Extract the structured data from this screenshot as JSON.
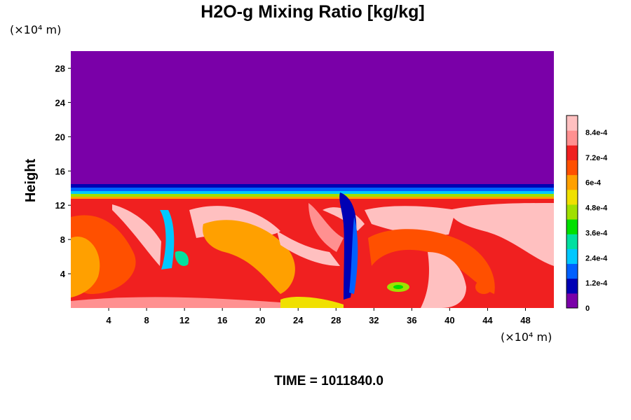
{
  "chart_data": {
    "type": "heatmap",
    "title": "H2O-g Mixing Ratio [kg/kg]",
    "ylabel": "Height",
    "xunit": "(×10⁴ m)",
    "yunit": "(×10⁴ m)",
    "x_range": [
      0,
      51
    ],
    "y_range": [
      0,
      30
    ],
    "x_ticks": [
      4,
      8,
      12,
      16,
      20,
      24,
      28,
      32,
      36,
      40,
      44,
      48
    ],
    "y_ticks": [
      4,
      8,
      12,
      16,
      20,
      24,
      28
    ],
    "colorbar": {
      "range": [
        0,
        0.00092
      ],
      "ticks": [
        {
          "value": 0,
          "label": "0"
        },
        {
          "value": 0.00012,
          "label": "1.2e-4"
        },
        {
          "value": 0.00024,
          "label": "2.4e-4"
        },
        {
          "value": 0.00036,
          "label": "3.6e-4"
        },
        {
          "value": 0.00048,
          "label": "4.8e-4"
        },
        {
          "value": 0.0006,
          "label": "6e-4"
        },
        {
          "value": 0.00072,
          "label": "7.2e-4"
        },
        {
          "value": 0.00084,
          "label": "8.4e-4"
        }
      ],
      "colors": [
        "#7a00a8",
        "#0000b4",
        "#0060ff",
        "#00c8ff",
        "#00e0a0",
        "#00e000",
        "#a0e000",
        "#f0e000",
        "#ffa000",
        "#ff5000",
        "#f02020",
        "#ff9090",
        "#ffc0c0"
      ]
    },
    "field": {
      "dry_layer_value": 0,
      "moist_layer_top": 12.8,
      "transition_top": 14.2,
      "moist_value": 0.00078,
      "regions": [
        {
          "x": [
            4,
            12
          ],
          "y": [
            2,
            10
          ],
          "value": 0.0007
        },
        {
          "x": [
            21,
            25
          ],
          "y": [
            3,
            9
          ],
          "value": 0.00062
        },
        {
          "x": [
            26,
            30
          ],
          "y": [
            6,
            12
          ],
          "value": 0.00088
        },
        {
          "x": [
            33,
            35
          ],
          "y": [
            2,
            3
          ],
          "value": 0.00048
        },
        {
          "x": [
            40,
            44
          ],
          "y": [
            0,
            8
          ],
          "value": 0.0009
        },
        {
          "x": [
            29,
            30.5
          ],
          "y": [
            1,
            12
          ],
          "value": 0.0001
        }
      ]
    }
  },
  "footer": {
    "time_label": "TIME = 1011840.0"
  }
}
